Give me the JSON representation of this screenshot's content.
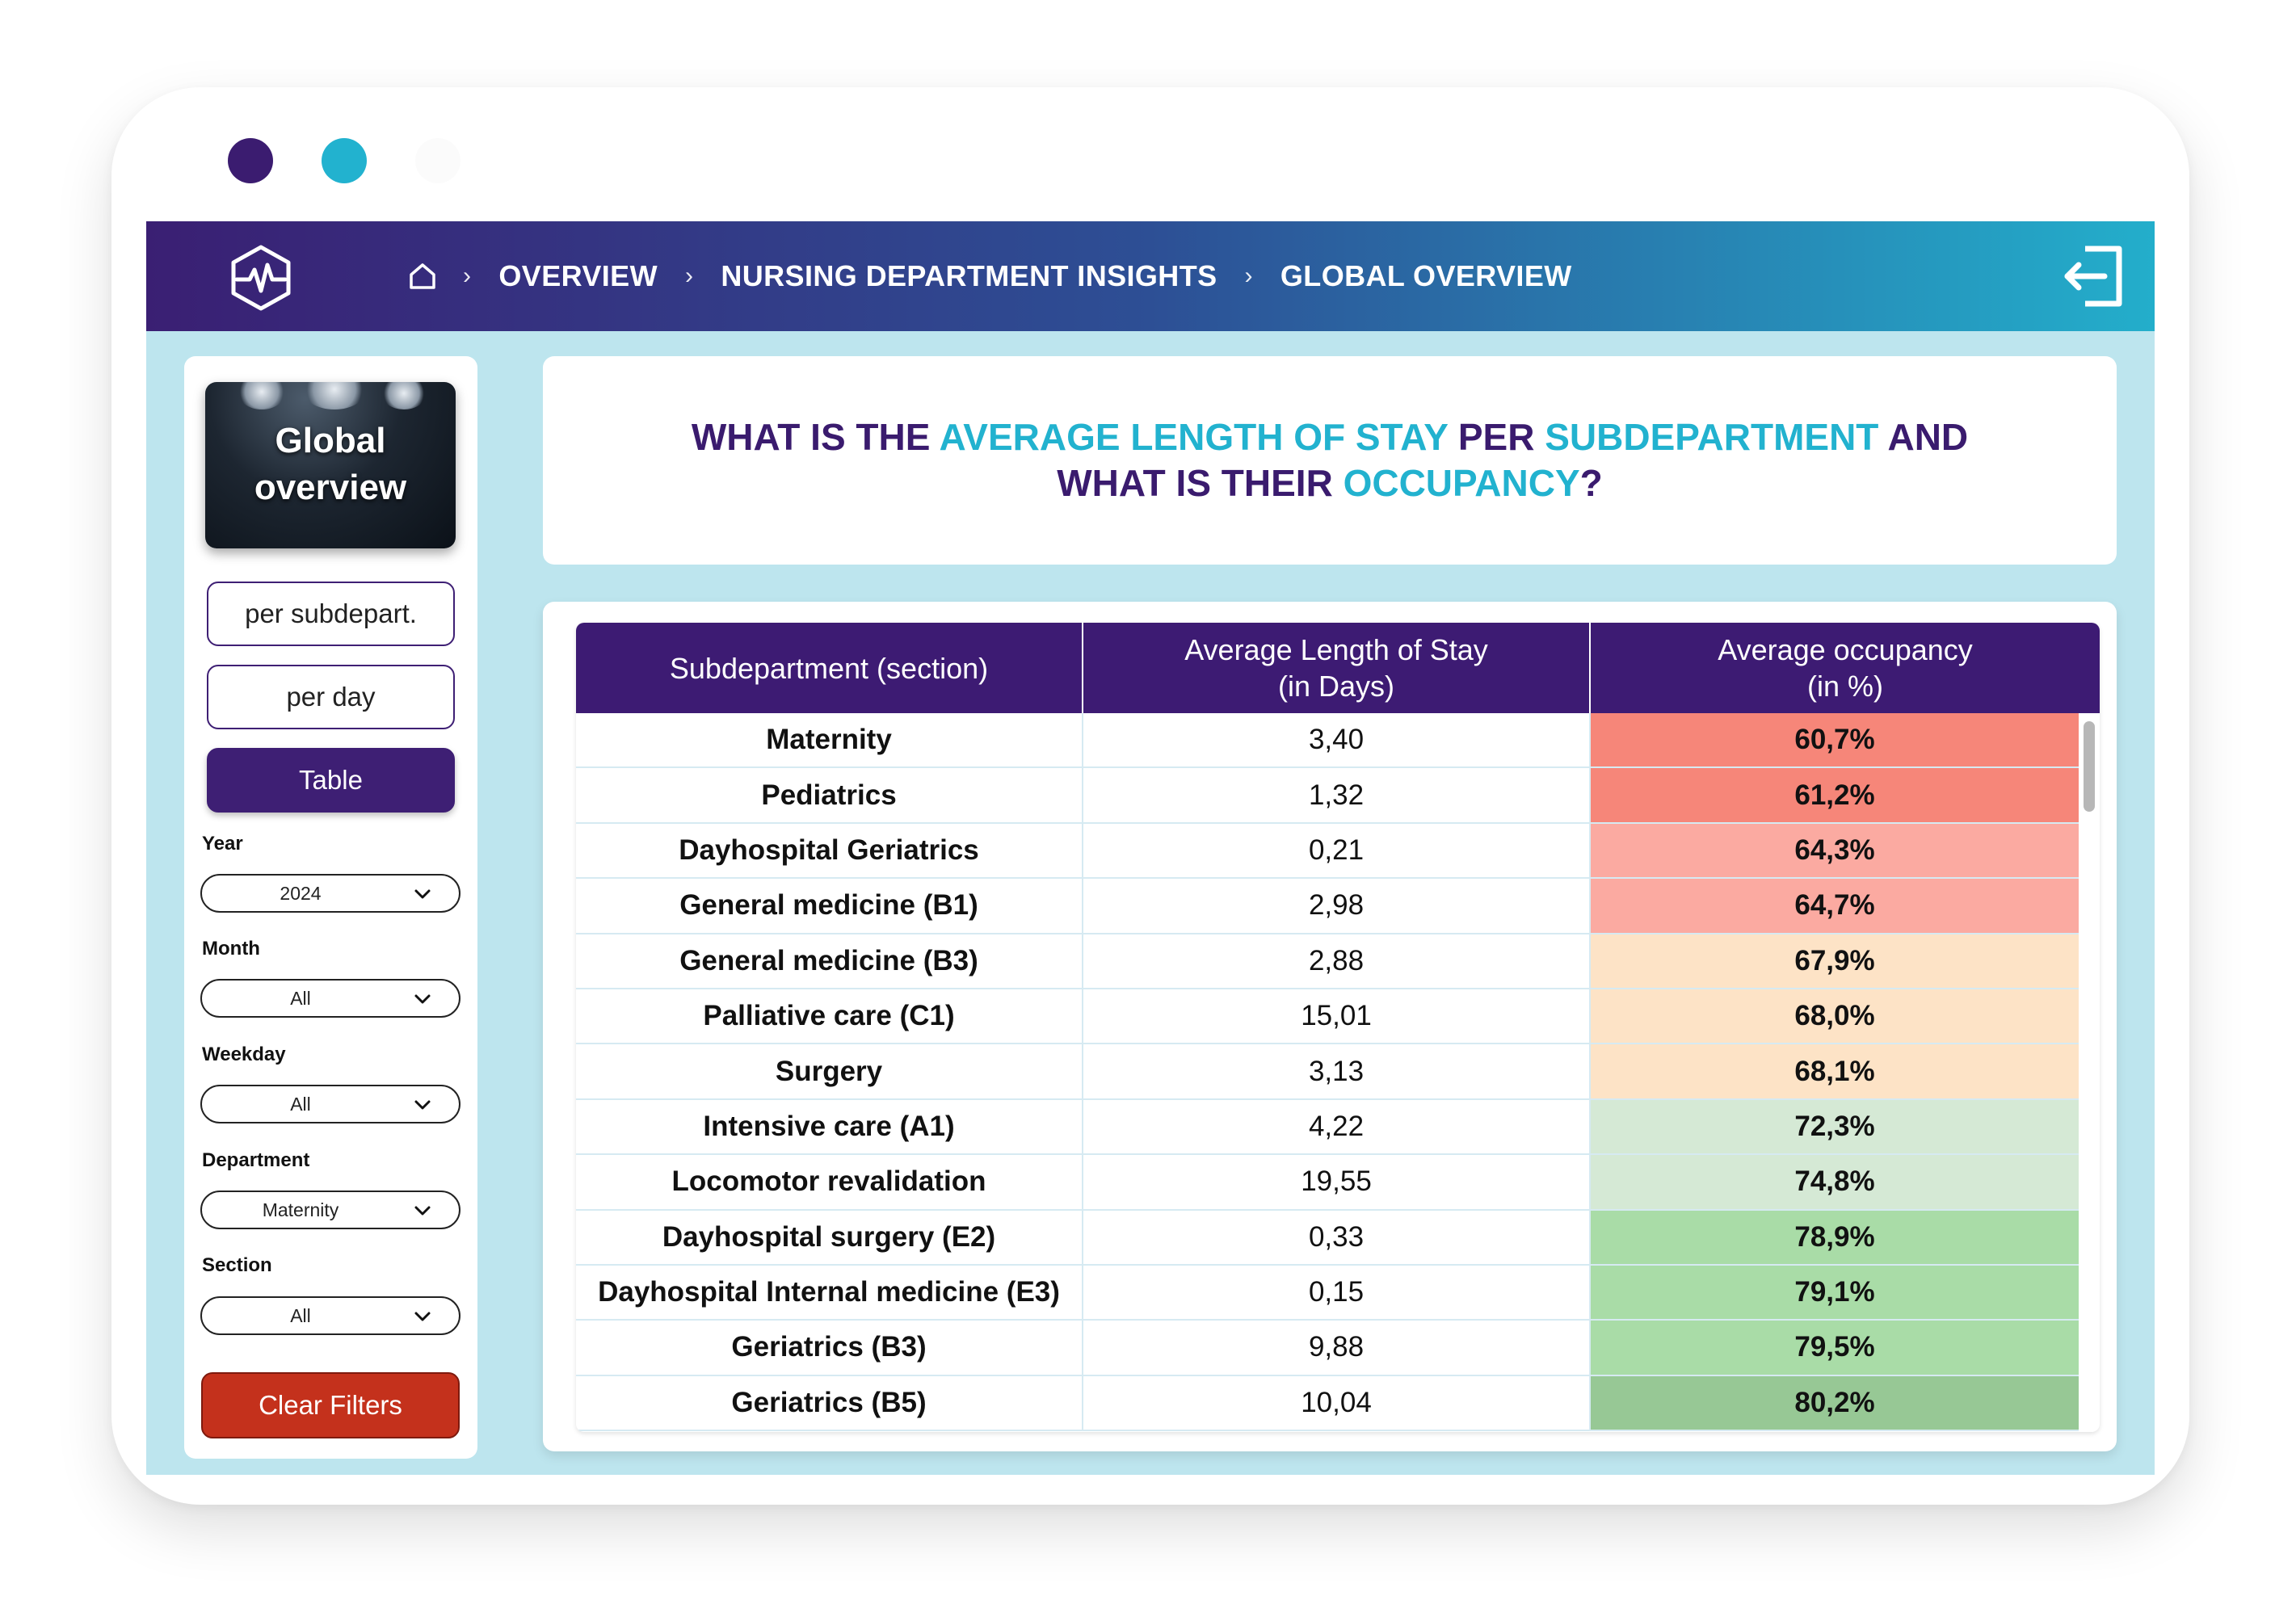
{
  "window": {
    "dots": [
      "#3b1c70",
      "#22b2cf",
      "#fbfbfb"
    ]
  },
  "topbar": {
    "logo_icon": "heart-pulse-hexagon-icon",
    "home_icon": "home-icon",
    "breadcrumbs": [
      "OVERVIEW",
      "NURSING DEPARTMENT INSIGHTS",
      "GLOBAL OVERVIEW"
    ],
    "exit_icon": "logout-icon"
  },
  "sidebar": {
    "hero_title_line1": "Global",
    "hero_title_line2": "overview",
    "buttons": {
      "subdepartment": "per subdepart.",
      "day": "per day",
      "table": "Table"
    },
    "filters": {
      "year": {
        "label": "Year",
        "value": "2024"
      },
      "month": {
        "label": "Month",
        "value": "All"
      },
      "weekday": {
        "label": "Weekday",
        "value": "All"
      },
      "department": {
        "label": "Department",
        "value": "Maternity"
      },
      "section": {
        "label": "Section",
        "value": "All"
      }
    },
    "clear_filters": "Clear Filters"
  },
  "question": {
    "p1": "WHAT IS THE ",
    "h1": "AVERAGE LENGTH OF STAY",
    "p2": " PER ",
    "h2": "SUBDEPARTMENT",
    "p3": " AND",
    "p4": "WHAT IS THEIR ",
    "h3": "OCCUPANCY",
    "p5": "?",
    "highlight_color": "#22b2cf",
    "text_color": "#3a1b6e"
  },
  "table": {
    "header": {
      "col1": "Subdepartment (section)",
      "col2_line1": "Average Length of Stay",
      "col2_line2": "(in Days)",
      "col3_line1": "Average occupancy",
      "col3_line2": "(in %)"
    },
    "rows": [
      {
        "name": "Maternity",
        "stay": "3,40",
        "occupancy": "60,7%",
        "color": "#f68679"
      },
      {
        "name": "Pediatrics",
        "stay": "1,32",
        "occupancy": "61,2%",
        "color": "#f68679"
      },
      {
        "name": "Dayhospital Geriatrics",
        "stay": "0,21",
        "occupancy": "64,3%",
        "color": "#fbaaa1"
      },
      {
        "name": "General medicine (B1)",
        "stay": "2,98",
        "occupancy": "64,7%",
        "color": "#fbaaa1"
      },
      {
        "name": "General medicine (B3)",
        "stay": "2,88",
        "occupancy": "67,9%",
        "color": "#fde3c6"
      },
      {
        "name": "Palliative care (C1)",
        "stay": "15,01",
        "occupancy": "68,0%",
        "color": "#fde3c6"
      },
      {
        "name": "Surgery",
        "stay": "3,13",
        "occupancy": "68,1%",
        "color": "#fde3c6"
      },
      {
        "name": "Intensive care (A1)",
        "stay": "4,22",
        "occupancy": "72,3%",
        "color": "#d5e9d5"
      },
      {
        "name": "Locomotor revalidation",
        "stay": "19,55",
        "occupancy": "74,8%",
        "color": "#d5e9d5"
      },
      {
        "name": "Dayhospital surgery (E2)",
        "stay": "0,33",
        "occupancy": "78,9%",
        "color": "#a9dca7"
      },
      {
        "name": "Dayhospital Internal medicine  (E3)",
        "stay": "0,15",
        "occupancy": "79,1%",
        "color": "#a9dca7"
      },
      {
        "name": "Geriatrics (B3)",
        "stay": "9,88",
        "occupancy": "79,5%",
        "color": "#a9dca7"
      },
      {
        "name": "Geriatrics (B5)",
        "stay": "10,04",
        "occupancy": "80,2%",
        "color": "#97c895"
      }
    ]
  }
}
